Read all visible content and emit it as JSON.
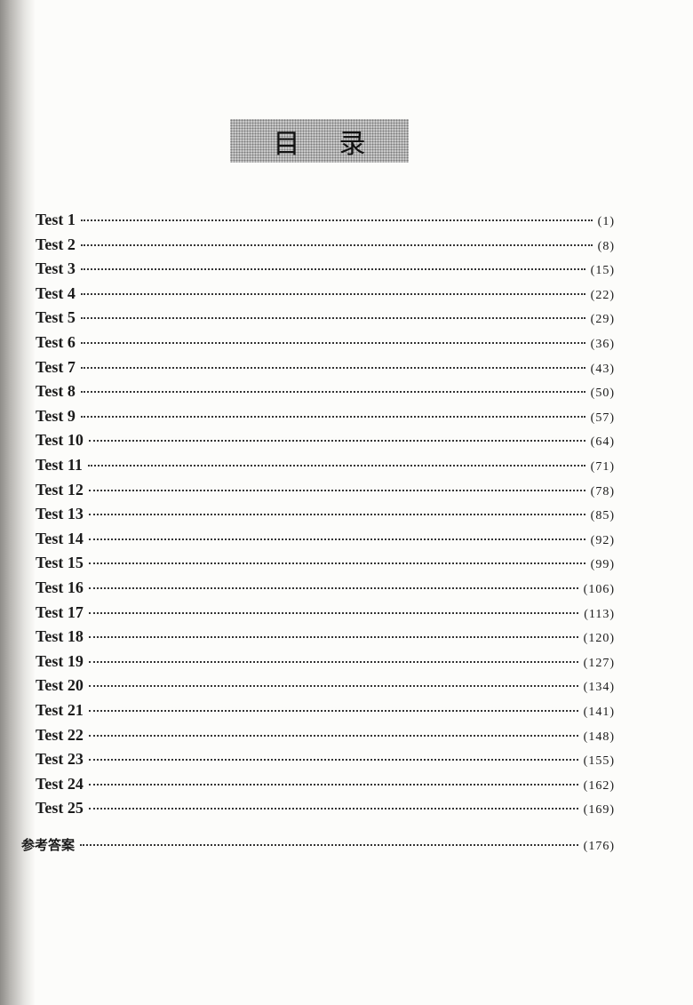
{
  "title": {
    "char1": "目",
    "char2": "录"
  },
  "entries": [
    {
      "label": "Test 1",
      "page": "(1)"
    },
    {
      "label": "Test 2",
      "page": "(8)"
    },
    {
      "label": "Test 3",
      "page": "(15)"
    },
    {
      "label": "Test 4",
      "page": "(22)"
    },
    {
      "label": "Test 5",
      "page": "(29)"
    },
    {
      "label": "Test 6",
      "page": "(36)"
    },
    {
      "label": "Test 7",
      "page": "(43)"
    },
    {
      "label": "Test 8",
      "page": "(50)"
    },
    {
      "label": "Test 9",
      "page": "(57)"
    },
    {
      "label": "Test 10",
      "page": "(64)"
    },
    {
      "label": "Test 11",
      "page": "(71)"
    },
    {
      "label": "Test 12",
      "page": "(78)"
    },
    {
      "label": "Test 13",
      "page": "(85)"
    },
    {
      "label": "Test 14",
      "page": "(92)"
    },
    {
      "label": "Test 15",
      "page": "(99)"
    },
    {
      "label": "Test 16",
      "page": "(106)"
    },
    {
      "label": "Test 17",
      "page": "(113)"
    },
    {
      "label": "Test 18",
      "page": "(120)"
    },
    {
      "label": "Test 19",
      "page": "(127)"
    },
    {
      "label": "Test 20",
      "page": "(134)"
    },
    {
      "label": "Test 21",
      "page": "(141)"
    },
    {
      "label": "Test 22",
      "page": "(148)"
    },
    {
      "label": "Test 23",
      "page": "(155)"
    },
    {
      "label": "Test 24",
      "page": "(162)"
    },
    {
      "label": "Test 25",
      "page": "(169)"
    }
  ],
  "answers": {
    "label": "参考答案",
    "page": "(176)"
  }
}
